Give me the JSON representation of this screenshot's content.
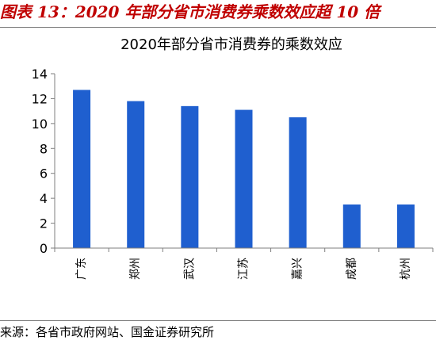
{
  "figure": {
    "title": "图表 13：2020 年部分省市消费券乘数效应超 10 倍",
    "source": "来源：各省市政府网站、国金证券研究所"
  },
  "chart_data": {
    "type": "bar",
    "title": "2020年部分省市消费券的乘数效应",
    "categories": [
      "广东",
      "郑州",
      "武汉",
      "江苏",
      "嘉兴",
      "成都",
      "杭州"
    ],
    "values": [
      12.7,
      11.8,
      11.4,
      11.1,
      10.5,
      3.5,
      3.5
    ],
    "ylim": [
      0,
      14
    ],
    "yticks": [
      "0",
      "2",
      "4",
      "6",
      "8",
      "10",
      "12",
      "14"
    ],
    "bar_color": "#1f5fcf",
    "grid": false,
    "legend": "none"
  }
}
